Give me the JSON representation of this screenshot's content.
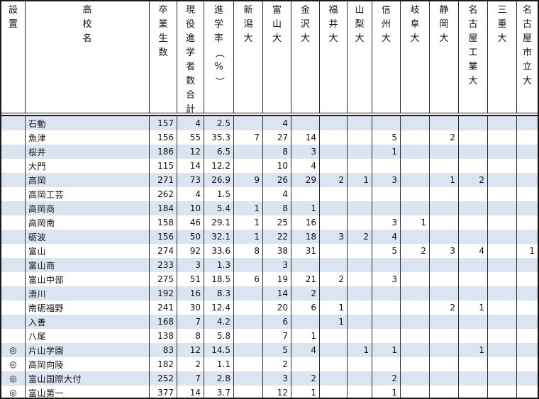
{
  "table": {
    "columns": {
      "mark": "設置",
      "school": "高校名",
      "graduates": "卒業生数",
      "current_total": "現役進学者数合計",
      "rate": "進学率（％）",
      "universities": [
        "新潟大",
        "富山大",
        "金沢大",
        "福井大",
        "山梨大",
        "信州大",
        "岐阜大",
        "静岡大",
        "名古屋工業大",
        "三重大",
        "名古屋市立大"
      ]
    },
    "rows": [
      {
        "mark": "",
        "school": "石動",
        "graduates": "157",
        "current": "4",
        "rate": "2.5",
        "values": [
          "",
          "4",
          "",
          "",
          "",
          "",
          "",
          "",
          "",
          "",
          ""
        ]
      },
      {
        "mark": "",
        "school": "魚津",
        "graduates": "156",
        "current": "55",
        "rate": "35.3",
        "values": [
          "7",
          "27",
          "14",
          "",
          "",
          "5",
          "",
          "2",
          "",
          "",
          ""
        ]
      },
      {
        "mark": "",
        "school": "桜井",
        "graduates": "186",
        "current": "12",
        "rate": "6.5",
        "values": [
          "",
          "8",
          "3",
          "",
          "",
          "1",
          "",
          "",
          "",
          "",
          ""
        ]
      },
      {
        "mark": "",
        "school": "大門",
        "graduates": "115",
        "current": "14",
        "rate": "12.2",
        "values": [
          "",
          "10",
          "4",
          "",
          "",
          "",
          "",
          "",
          "",
          "",
          ""
        ]
      },
      {
        "mark": "",
        "school": "高岡",
        "graduates": "271",
        "current": "73",
        "rate": "26.9",
        "values": [
          "9",
          "26",
          "29",
          "2",
          "1",
          "3",
          "",
          "1",
          "2",
          "",
          ""
        ]
      },
      {
        "mark": "",
        "school": "高岡工芸",
        "graduates": "262",
        "current": "4",
        "rate": "1.5",
        "values": [
          "",
          "4",
          "",
          "",
          "",
          "",
          "",
          "",
          "",
          "",
          ""
        ]
      },
      {
        "mark": "",
        "school": "高岡商",
        "graduates": "184",
        "current": "10",
        "rate": "5.4",
        "values": [
          "1",
          "8",
          "1",
          "",
          "",
          "",
          "",
          "",
          "",
          "",
          ""
        ]
      },
      {
        "mark": "",
        "school": "高岡南",
        "graduates": "158",
        "current": "46",
        "rate": "29.1",
        "values": [
          "1",
          "25",
          "16",
          "",
          "",
          "3",
          "1",
          "",
          "",
          "",
          ""
        ]
      },
      {
        "mark": "",
        "school": "砺波",
        "graduates": "156",
        "current": "50",
        "rate": "32.1",
        "values": [
          "1",
          "22",
          "18",
          "3",
          "2",
          "4",
          "",
          "",
          "",
          "",
          ""
        ]
      },
      {
        "mark": "",
        "school": "富山",
        "graduates": "274",
        "current": "92",
        "rate": "33.6",
        "values": [
          "8",
          "38",
          "31",
          "",
          "",
          "5",
          "2",
          "3",
          "4",
          "",
          "1"
        ]
      },
      {
        "mark": "",
        "school": "富山商",
        "graduates": "233",
        "current": "3",
        "rate": "1.3",
        "values": [
          "",
          "3",
          "",
          "",
          "",
          "",
          "",
          "",
          "",
          "",
          ""
        ]
      },
      {
        "mark": "",
        "school": "富山中部",
        "graduates": "275",
        "current": "51",
        "rate": "18.5",
        "values": [
          "6",
          "19",
          "21",
          "2",
          "",
          "3",
          "",
          "",
          "",
          "",
          ""
        ]
      },
      {
        "mark": "",
        "school": "滑川",
        "graduates": "192",
        "current": "16",
        "rate": "8.3",
        "values": [
          "",
          "14",
          "2",
          "",
          "",
          "",
          "",
          "",
          "",
          "",
          ""
        ]
      },
      {
        "mark": "",
        "school": "南砺福野",
        "graduates": "241",
        "current": "30",
        "rate": "12.4",
        "values": [
          "",
          "20",
          "6",
          "1",
          "",
          "",
          "",
          "2",
          "1",
          "",
          ""
        ]
      },
      {
        "mark": "",
        "school": "入善",
        "graduates": "168",
        "current": "7",
        "rate": "4.2",
        "values": [
          "",
          "6",
          "",
          "1",
          "",
          "",
          "",
          "",
          "",
          "",
          ""
        ]
      },
      {
        "mark": "",
        "school": "八尾",
        "graduates": "138",
        "current": "8",
        "rate": "5.8",
        "values": [
          "",
          "7",
          "1",
          "",
          "",
          "",
          "",
          "",
          "",
          "",
          ""
        ]
      },
      {
        "mark": "◎",
        "school": "片山学園",
        "graduates": "83",
        "current": "12",
        "rate": "14.5",
        "values": [
          "",
          "5",
          "4",
          "",
          "1",
          "1",
          "",
          "",
          "1",
          "",
          ""
        ]
      },
      {
        "mark": "◎",
        "school": "高岡向陵",
        "graduates": "182",
        "current": "2",
        "rate": "1.1",
        "values": [
          "",
          "2",
          "",
          "",
          "",
          "",
          "",
          "",
          "",
          "",
          ""
        ]
      },
      {
        "mark": "◎",
        "school": "富山国際大付",
        "graduates": "252",
        "current": "7",
        "rate": "2.8",
        "values": [
          "",
          "3",
          "2",
          "",
          "",
          "2",
          "",
          "",
          "",
          "",
          ""
        ]
      },
      {
        "mark": "◎",
        "school": "富山第一",
        "graduates": "377",
        "current": "14",
        "rate": "3.7",
        "values": [
          "",
          "12",
          "1",
          "",
          "",
          "1",
          "",
          "",
          "",
          "",
          ""
        ]
      }
    ]
  },
  "colors": {
    "band": "#dbe5f1",
    "grid": "#2e2e2e"
  }
}
